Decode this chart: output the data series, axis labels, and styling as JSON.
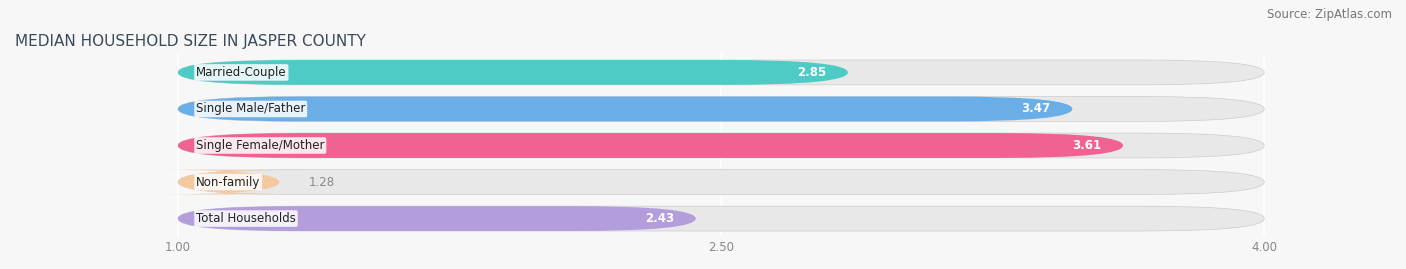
{
  "title": "MEDIAN HOUSEHOLD SIZE IN JASPER COUNTY",
  "source": "Source: ZipAtlas.com",
  "categories": [
    "Married-Couple",
    "Single Male/Father",
    "Single Female/Mother",
    "Non-family",
    "Total Households"
  ],
  "values": [
    2.85,
    3.47,
    3.61,
    1.28,
    2.43
  ],
  "bar_colors": [
    "#4ecbc4",
    "#6aaee8",
    "#f06292",
    "#f5c9a0",
    "#b39ddb"
  ],
  "value_text_colors": [
    "white",
    "white",
    "white",
    "#555555",
    "#555555"
  ],
  "xlim_min": 0.55,
  "xlim_max": 4.35,
  "data_min": 1.0,
  "data_max": 4.0,
  "xticks": [
    1.0,
    2.5,
    4.0
  ],
  "xtick_labels": [
    "1.00",
    "2.50",
    "4.00"
  ],
  "title_fontsize": 11,
  "label_fontsize": 8.5,
  "value_fontsize": 8.5,
  "source_fontsize": 8.5,
  "background_color": "#f7f7f7",
  "bar_bg_color": "#e8e8e8",
  "bar_height": 0.68,
  "bar_gap": 0.12,
  "title_color": "#3a4a5a",
  "source_color": "#777777",
  "label_color": "#222222",
  "tick_color": "#888888"
}
